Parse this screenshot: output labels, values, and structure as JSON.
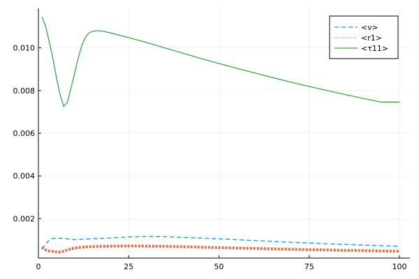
{
  "chart_data": {
    "type": "line",
    "title": "",
    "xlabel": "",
    "ylabel": "",
    "xlim": [
      0,
      102.9
    ],
    "ylim": [
      0.00015,
      0.01185
    ],
    "grid": true,
    "legend_position": "top-right",
    "x_ticks": [
      {
        "value": 0,
        "label": "0"
      },
      {
        "value": 25,
        "label": "25"
      },
      {
        "value": 50,
        "label": "50"
      },
      {
        "value": 75,
        "label": "75"
      },
      {
        "value": 100,
        "label": "100"
      }
    ],
    "y_ticks": [
      {
        "value": 0.002,
        "label": "0.002"
      },
      {
        "value": 0.004,
        "label": "0.004"
      },
      {
        "value": 0.006,
        "label": "0.006"
      },
      {
        "value": 0.008,
        "label": "0.008"
      },
      {
        "value": 0.01,
        "label": "0.010"
      }
    ],
    "series": [
      {
        "name": "<ν>",
        "color": "#009AFA",
        "style": "dashed",
        "x": [
          1,
          2,
          3,
          4,
          5,
          6,
          7,
          8,
          9,
          10,
          12,
          15,
          20,
          25,
          30,
          35,
          40,
          45,
          50,
          55,
          60,
          65,
          70,
          75,
          80,
          85,
          90,
          95,
          100
        ],
        "y": [
          0.00058,
          0.0008,
          0.001,
          0.00107,
          0.00108,
          0.00108,
          0.00108,
          0.00105,
          0.00103,
          0.00101,
          0.00103,
          0.00106,
          0.00109,
          0.00114,
          0.00116,
          0.00115,
          0.00112,
          0.00109,
          0.00105,
          0.00101,
          0.00097,
          0.00093,
          0.00089,
          0.00086,
          0.00082,
          0.00079,
          0.00076,
          0.00073,
          0.0007
        ]
      },
      {
        "name": "<r1>",
        "color": "#E26F46",
        "style": "dotted",
        "x": [
          1,
          2,
          3,
          4,
          5,
          6,
          7,
          8,
          9,
          10,
          12,
          15,
          20,
          25,
          30,
          35,
          40,
          45,
          50,
          55,
          60,
          65,
          70,
          75,
          80,
          85,
          90,
          95,
          100
        ],
        "y": [
          0.00065,
          0.00053,
          0.00048,
          0.00046,
          0.00044,
          0.00043,
          0.00047,
          0.00053,
          0.00058,
          0.00062,
          0.00066,
          0.00069,
          0.00071,
          0.00072,
          0.00071,
          0.0007,
          0.00068,
          0.00066,
          0.00064,
          0.00062,
          0.0006,
          0.00058,
          0.00056,
          0.00054,
          0.00053,
          0.00051,
          0.0005,
          0.00048,
          0.00047
        ]
      },
      {
        "name": "<τ11>",
        "color": "#3DA44D",
        "style": "solid",
        "x": [
          1,
          2,
          3,
          4,
          5,
          6,
          7,
          8,
          9,
          10,
          11,
          12,
          13,
          14,
          15,
          16,
          17,
          18,
          20,
          25,
          30,
          35,
          40,
          45,
          50,
          55,
          60,
          65,
          70,
          75,
          80,
          85,
          90,
          95,
          100
        ],
        "y": [
          0.01145,
          0.011,
          0.0103,
          0.0095,
          0.0086,
          0.0078,
          0.00725,
          0.00745,
          0.0081,
          0.0088,
          0.0095,
          0.0101,
          0.0105,
          0.0107,
          0.01077,
          0.0108,
          0.0108,
          0.01078,
          0.0107,
          0.01048,
          0.01025,
          0.01,
          0.00975,
          0.0095,
          0.00927,
          0.00904,
          0.00882,
          0.0086,
          0.00839,
          0.00819,
          0.008,
          0.00781,
          0.00763,
          0.00746,
          0.00746
        ]
      }
    ]
  }
}
